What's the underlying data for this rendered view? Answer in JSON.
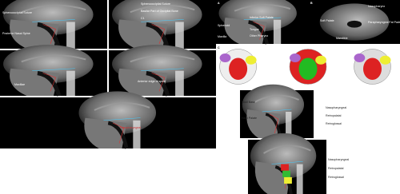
{
  "figure": {
    "panels": [
      {
        "labels": [
          "Sphenooccipital Suture",
          "Posterior Nasal Spine"
        ]
      },
      {
        "labels": [
          "Sphenooccipital Suture",
          "Basilar Part of Occipital Bone",
          "C1"
        ]
      },
      {
        "labels": [
          "Maxillae"
        ]
      },
      {
        "labels": [
          "Anterior edge of spine"
        ]
      },
      {
        "labels": [
          "Nasopharyngeal"
        ]
      },
      {
        "letter": "A",
        "labels": [
          "Sphenoid",
          "Inferior Soft Palate",
          "Maxilla",
          "Tongue",
          "Other Pharynx"
        ]
      },
      {
        "letter": "B",
        "labels": [
          "Nasopharynx",
          "Soft Palate",
          "Parapharyngeal Fat Pads",
          "Mandible"
        ]
      },
      {
        "letter": "C"
      },
      {
        "labels": [
          "Skull Base",
          "Hard Palate",
          "Nasopharyngeal",
          "Retropalatal",
          "Retroglossal"
        ]
      },
      {
        "labels": [
          "Nasopharyngeal",
          "Retropalatal",
          "Retroglossal"
        ]
      }
    ]
  }
}
